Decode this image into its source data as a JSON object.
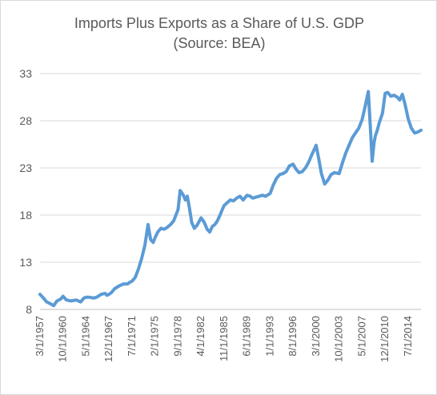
{
  "chart_data": {
    "type": "line",
    "title": "Imports Plus Exports as a Share of U.S. GDP",
    "subtitle": "(Source: BEA)",
    "xlabel": "",
    "ylabel": "",
    "ylim": [
      8,
      33
    ],
    "yticks": [
      8,
      13,
      18,
      23,
      28,
      33
    ],
    "xlim": [
      1957.17,
      2016.5
    ],
    "xtick_labels": [
      "3/1/1957",
      "10/1/1960",
      "5/1/1964",
      "12/1/1967",
      "7/1/1971",
      "2/1/1975",
      "9/1/1978",
      "4/1/1982",
      "11/1/1985",
      "6/1/1989",
      "1/1/1993",
      "8/1/1996",
      "3/1/2000",
      "10/1/2003",
      "5/1/2007",
      "12/1/2010",
      "7/1/2014"
    ],
    "xtick_values": [
      1957.17,
      1960.75,
      1964.33,
      1967.92,
      1971.5,
      1975.08,
      1978.67,
      1982.25,
      1985.83,
      1989.42,
      1993.0,
      1996.58,
      2000.17,
      2003.75,
      2007.33,
      2010.92,
      2014.5
    ],
    "grid": true,
    "legend": "none",
    "line_color": "#5b9bd5",
    "series": [
      {
        "x": [
          1957.17,
          1957.6,
          1958.2,
          1958.8,
          1959.3,
          1959.8,
          1960.4,
          1960.75,
          1961.3,
          1962.0,
          1962.8,
          1963.5,
          1964.0,
          1964.33,
          1964.9,
          1965.5,
          1966.0,
          1966.7,
          1967.3,
          1967.6,
          1967.92,
          1968.3,
          1968.8,
          1969.5,
          1970.2,
          1970.8,
          1971.2,
          1971.5,
          1972.0,
          1972.5,
          1973.0,
          1973.5,
          1974.0,
          1974.4,
          1974.8,
          1975.08,
          1975.5,
          1976.0,
          1976.5,
          1977.0,
          1977.5,
          1978.0,
          1978.67,
          1979.0,
          1979.5,
          1979.8,
          1980.1,
          1980.4,
          1980.8,
          1981.2,
          1981.6,
          1982.25,
          1982.7,
          1983.2,
          1983.6,
          1984.0,
          1984.4,
          1984.8,
          1985.2,
          1985.5,
          1985.83,
          1986.3,
          1986.8,
          1987.3,
          1987.8,
          1988.3,
          1988.8,
          1989.42,
          1989.9,
          1990.3,
          1990.8,
          1991.3,
          1991.8,
          1992.3,
          1993.0,
          1993.5,
          1994.0,
          1994.5,
          1995.0,
          1995.5,
          1996.0,
          1996.58,
          1997.0,
          1997.5,
          1998.0,
          1998.5,
          1999.0,
          1999.5,
          2000.17,
          2000.6,
          2001.0,
          2001.5,
          2002.0,
          2002.5,
          2003.0,
          2003.75,
          2004.3,
          2004.8,
          2005.3,
          2005.8,
          2006.3,
          2006.8,
          2007.33,
          2007.8,
          2008.3,
          2008.6,
          2008.9,
          2009.2,
          2009.4,
          2009.7,
          2010.0,
          2010.5,
          2010.92,
          2011.3,
          2011.8,
          2012.3,
          2012.8,
          2013.2,
          2013.6,
          2014.0,
          2014.5,
          2015.0,
          2015.5,
          2016.0,
          2016.5
        ],
        "y": [
          9.6,
          9.3,
          8.8,
          8.6,
          8.4,
          8.9,
          9.1,
          9.4,
          9.0,
          8.9,
          9.0,
          8.8,
          9.2,
          9.3,
          9.3,
          9.2,
          9.3,
          9.6,
          9.7,
          9.5,
          9.6,
          9.8,
          10.2,
          10.5,
          10.7,
          10.7,
          10.9,
          11.0,
          11.4,
          12.3,
          13.4,
          14.8,
          17.0,
          15.4,
          15.1,
          15.6,
          16.2,
          16.6,
          16.5,
          16.7,
          17.0,
          17.4,
          18.6,
          20.6,
          20.1,
          19.6,
          20.0,
          18.9,
          17.2,
          16.6,
          16.9,
          17.7,
          17.3,
          16.5,
          16.2,
          16.8,
          17.0,
          17.4,
          18.0,
          18.5,
          19.0,
          19.3,
          19.6,
          19.5,
          19.8,
          20.0,
          19.6,
          20.1,
          20.0,
          19.8,
          19.9,
          20.0,
          20.1,
          20.0,
          20.3,
          21.2,
          21.9,
          22.3,
          22.4,
          22.6,
          23.2,
          23.4,
          22.9,
          22.5,
          22.6,
          23.0,
          23.6,
          24.4,
          25.4,
          23.9,
          22.4,
          21.3,
          21.7,
          22.3,
          22.5,
          22.4,
          23.6,
          24.6,
          25.4,
          26.2,
          26.7,
          27.2,
          28.1,
          29.5,
          31.1,
          27.5,
          23.7,
          25.7,
          26.4,
          27.0,
          27.8,
          28.8,
          30.9,
          31.0,
          30.6,
          30.7,
          30.5,
          30.2,
          30.8,
          29.8,
          28.2,
          27.2,
          26.7,
          26.8,
          27.0
        ]
      }
    ]
  }
}
